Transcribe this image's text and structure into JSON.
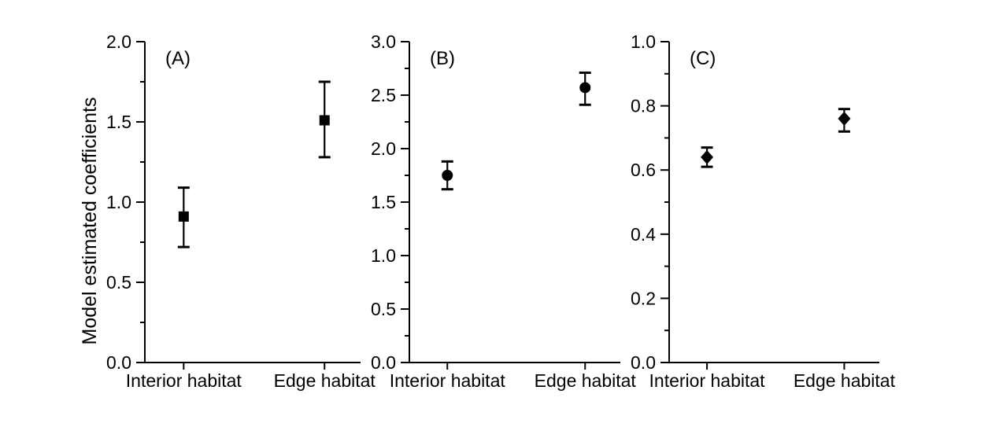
{
  "colors": {
    "ink": "#000000",
    "background": "#ffffff"
  },
  "chart_data": {
    "type": "scatter",
    "title": "",
    "xlabel": "",
    "ylabel": "Model estimated coefficients",
    "grid": false,
    "legend": false,
    "categories": [
      "Interior habitat",
      "Edge habitat"
    ],
    "panels": [
      {
        "label": "(A)",
        "marker": "square",
        "ylim": [
          0.0,
          2.0
        ],
        "ytick_major": 0.5,
        "ytick_minor": 0.25,
        "ytick_labels": [
          "0.0",
          "0.5",
          "1.0",
          "1.5",
          "2.0"
        ],
        "series": [
          {
            "category": "Interior habitat",
            "value": 0.91,
            "ci_low": 0.72,
            "ci_high": 1.09
          },
          {
            "category": "Edge habitat",
            "value": 1.51,
            "ci_low": 1.28,
            "ci_high": 1.75
          }
        ]
      },
      {
        "label": "(B)",
        "marker": "circle",
        "ylim": [
          0.0,
          3.0
        ],
        "ytick_major": 0.5,
        "ytick_minor": 0.25,
        "ytick_labels": [
          "0.0",
          "0.5",
          "1.0",
          "1.5",
          "2.0",
          "2.5",
          "3.0"
        ],
        "series": [
          {
            "category": "Interior habitat",
            "value": 1.75,
            "ci_low": 1.62,
            "ci_high": 1.88
          },
          {
            "category": "Edge habitat",
            "value": 2.57,
            "ci_low": 2.41,
            "ci_high": 2.71
          }
        ]
      },
      {
        "label": "(C)",
        "marker": "diamond",
        "ylim": [
          0.0,
          1.0
        ],
        "ytick_major": 0.2,
        "ytick_minor": 0.1,
        "ytick_labels": [
          "0.0",
          "0.2",
          "0.4",
          "0.6",
          "0.8",
          "1.0"
        ],
        "series": [
          {
            "category": "Interior habitat",
            "value": 0.64,
            "ci_low": 0.61,
            "ci_high": 0.67
          },
          {
            "category": "Edge habitat",
            "value": 0.76,
            "ci_low": 0.72,
            "ci_high": 0.79
          }
        ]
      }
    ]
  }
}
